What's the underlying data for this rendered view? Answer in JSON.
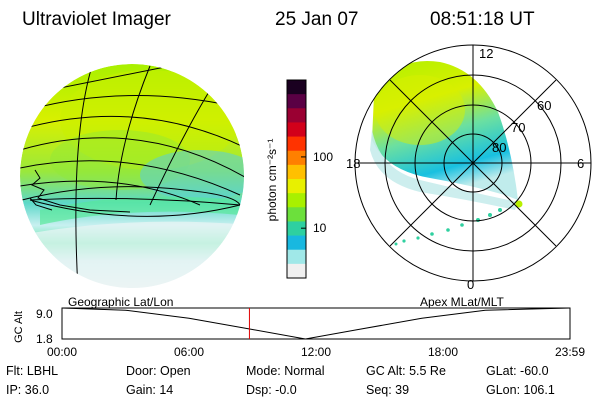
{
  "header": {
    "title": "Ultraviolet Imager",
    "date": "25 Jan 07",
    "time": "08:51:18 UT"
  },
  "colorbar": {
    "unit_label": "photon cm⁻²s⁻¹",
    "tick_labels": [
      "100",
      "10"
    ],
    "tick_values": [
      100,
      10
    ],
    "range": [
      2,
      1200
    ],
    "colors": [
      "#1a0020",
      "#5a0044",
      "#9a0032",
      "#d2001a",
      "#ff3300",
      "#ff8000",
      "#ffc000",
      "#e8f000",
      "#a8f000",
      "#6ce03c",
      "#2ed0a0",
      "#18b8e0",
      "#a0e8e8",
      "#f0f0f0"
    ]
  },
  "polar_plot": {
    "mlt_labels": [
      "12",
      "6",
      "0",
      "18"
    ],
    "lat_labels": [
      "60",
      "70",
      "80"
    ]
  },
  "timeline": {
    "ylabel": "GC Alt",
    "yticks": [
      "9.0",
      "1.8"
    ],
    "yrange": [
      1.8,
      9.0
    ],
    "left_title": "Geographic Lat/Lon",
    "right_title": "Apex MLat/MLT",
    "xticks": [
      "00:00",
      "06:00",
      "12:00",
      "18:00",
      "23:59"
    ],
    "xrange_hours": [
      0,
      24
    ],
    "current_hour": 8.855,
    "alt_profile": [
      [
        0,
        9.0
      ],
      [
        3,
        8.5
      ],
      [
        6,
        6.6
      ],
      [
        9,
        4.0
      ],
      [
        11.5,
        1.8
      ],
      [
        14,
        4.0
      ],
      [
        17,
        6.6
      ],
      [
        20,
        8.5
      ],
      [
        24,
        9.0
      ]
    ]
  },
  "status": {
    "flt": "Flt: LBHL",
    "ip": "IP: 36.0",
    "door": "Door: Open",
    "gain": "Gain: 14",
    "mode": "Mode: Normal",
    "dsp": "Dsp:    -0.0",
    "gc_alt": "GC Alt: 5.5 Re",
    "seq": "Seq: 39",
    "glat": "GLat: -60.0",
    "glon": "GLon: 106.1"
  }
}
